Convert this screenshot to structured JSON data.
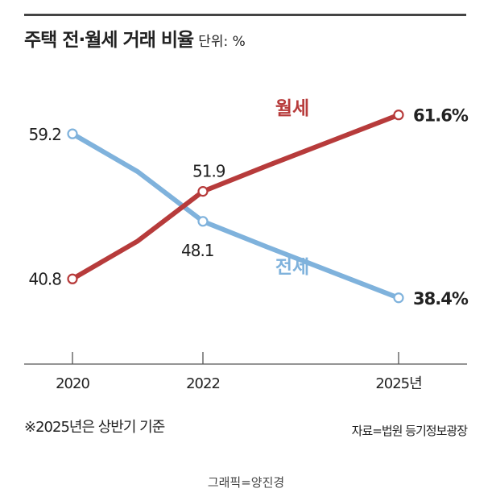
{
  "header": {
    "title": "주택 전·월세 거래 비율",
    "unit": "단위: %"
  },
  "footer": {
    "note": "※2025년은 상반기 기준",
    "source": "자료=법원 등기정보광장",
    "credit": "그래픽=양진경"
  },
  "colors": {
    "jeonse": "#7fb2dc",
    "wolse": "#b73b3b",
    "axis": "#555555"
  },
  "chart_data": {
    "type": "line",
    "x": [
      2020,
      2021,
      2022,
      2023,
      2024,
      2025
    ],
    "x_tick_labels": [
      "2020",
      "2022",
      "2025년"
    ],
    "x_tick_values": [
      2020,
      2022,
      2025
    ],
    "ylim": [
      30,
      68
    ],
    "series": [
      {
        "name": "월세",
        "values": [
          40.8,
          45.6,
          51.9,
          55.2,
          58.4,
          61.6
        ],
        "labels": [
          "40.8",
          "",
          "51.9",
          "",
          "",
          "61.6%"
        ]
      },
      {
        "name": "전세",
        "values": [
          59.2,
          54.4,
          48.1,
          44.8,
          41.6,
          38.4
        ],
        "labels": [
          "59.2",
          "",
          "48.1",
          "",
          "",
          "38.4%"
        ]
      }
    ]
  }
}
